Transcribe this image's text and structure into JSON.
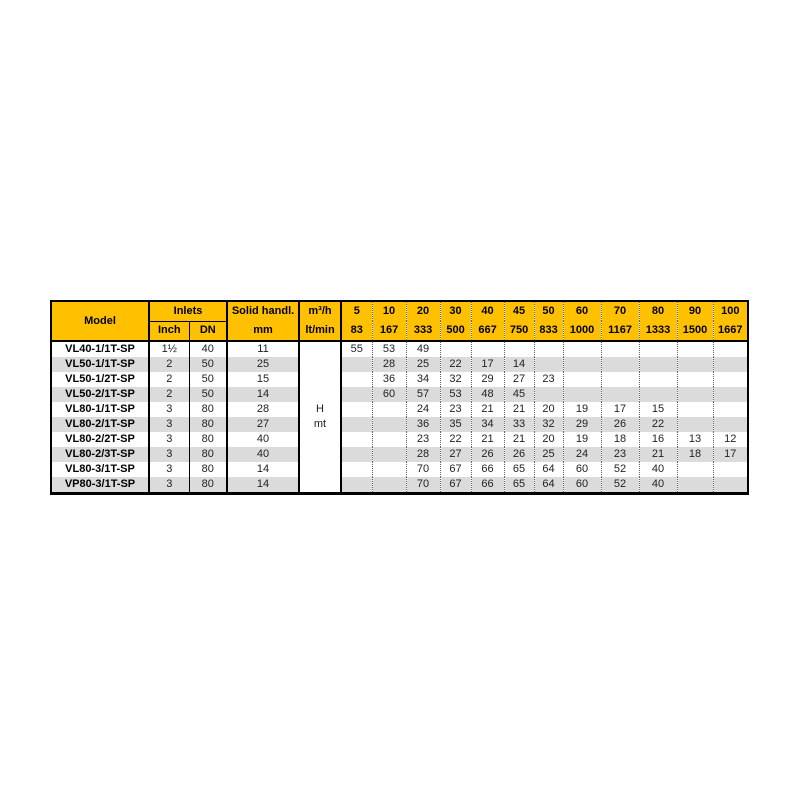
{
  "colors": {
    "header_bg": "#FFC000",
    "stripe_bg": "#DBDBDB",
    "border": "#000000",
    "dotted_separator": "#666666"
  },
  "table": {
    "title_semantic": "pump-performance-table",
    "header": {
      "model_label": "Model",
      "inlets_label": "Inlets",
      "inch_label": "Inch",
      "dn_label": "DN",
      "solid_label_line1": "Solid handl.",
      "solid_label_line2": "mm",
      "flow_unit_line1": "m³/h",
      "flow_unit_line2": "lt/min",
      "flow_columns": [
        {
          "m3h": "5",
          "lt_min": "83"
        },
        {
          "m3h": "10",
          "lt_min": "167"
        },
        {
          "m3h": "20",
          "lt_min": "333"
        },
        {
          "m3h": "30",
          "lt_min": "500"
        },
        {
          "m3h": "40",
          "lt_min": "667"
        },
        {
          "m3h": "45",
          "lt_min": "750"
        },
        {
          "m3h": "50",
          "lt_min": "833"
        },
        {
          "m3h": "60",
          "lt_min": "1000"
        },
        {
          "m3h": "70",
          "lt_min": "1167"
        },
        {
          "m3h": "80",
          "lt_min": "1333"
        },
        {
          "m3h": "90",
          "lt_min": "1500"
        },
        {
          "m3h": "100",
          "lt_min": "1667"
        }
      ]
    },
    "head_unit_cell": {
      "line1": "H",
      "line2": "mt"
    },
    "rows": [
      {
        "model": "VL40-1/1T-SP",
        "inch": "1½",
        "dn": "40",
        "solid": "11",
        "values": [
          "55",
          "53",
          "49",
          "",
          "",
          "",
          "",
          "",
          "",
          "",
          "",
          ""
        ]
      },
      {
        "model": "VL50-1/1T-SP",
        "inch": "2",
        "dn": "50",
        "solid": "25",
        "values": [
          "",
          "28",
          "25",
          "22",
          "17",
          "14",
          "",
          "",
          "",
          "",
          "",
          ""
        ]
      },
      {
        "model": "VL50-1/2T-SP",
        "inch": "2",
        "dn": "50",
        "solid": "15",
        "values": [
          "",
          "36",
          "34",
          "32",
          "29",
          "27",
          "23",
          "",
          "",
          "",
          "",
          ""
        ]
      },
      {
        "model": "VL50-2/1T-SP",
        "inch": "2",
        "dn": "50",
        "solid": "14",
        "values": [
          "",
          "60",
          "57",
          "53",
          "48",
          "45",
          "",
          "",
          "",
          "",
          "",
          ""
        ]
      },
      {
        "model": "VL80-1/1T-SP",
        "inch": "3",
        "dn": "80",
        "solid": "28",
        "values": [
          "",
          "",
          "24",
          "23",
          "21",
          "21",
          "20",
          "19",
          "17",
          "15",
          "",
          ""
        ]
      },
      {
        "model": "VL80-2/1T-SP",
        "inch": "3",
        "dn": "80",
        "solid": "27",
        "values": [
          "",
          "",
          "36",
          "35",
          "34",
          "33",
          "32",
          "29",
          "26",
          "22",
          "",
          ""
        ]
      },
      {
        "model": "VL80-2/2T-SP",
        "inch": "3",
        "dn": "80",
        "solid": "40",
        "values": [
          "",
          "",
          "23",
          "22",
          "21",
          "21",
          "20",
          "19",
          "18",
          "16",
          "13",
          "12"
        ]
      },
      {
        "model": "VL80-2/3T-SP",
        "inch": "3",
        "dn": "80",
        "solid": "40",
        "values": [
          "",
          "",
          "28",
          "27",
          "26",
          "26",
          "25",
          "24",
          "23",
          "21",
          "18",
          "17"
        ]
      },
      {
        "model": "VL80-3/1T-SP",
        "inch": "3",
        "dn": "80",
        "solid": "14",
        "values": [
          "",
          "",
          "70",
          "67",
          "66",
          "65",
          "64",
          "60",
          "52",
          "40",
          "",
          ""
        ]
      },
      {
        "model": "VP80-3/1T-SP",
        "inch": "3",
        "dn": "80",
        "solid": "14",
        "values": [
          "",
          "",
          "70",
          "67",
          "66",
          "65",
          "64",
          "60",
          "52",
          "40",
          "",
          ""
        ]
      }
    ]
  }
}
